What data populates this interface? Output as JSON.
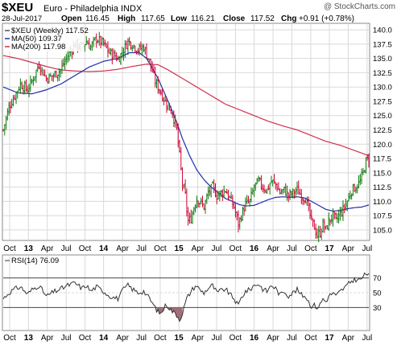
{
  "header": {
    "symbol": "$XEU",
    "name": "Euro - Philadelphia INDX",
    "watermark": "@ StockCharts.com",
    "date": "28-Jul-2017",
    "open_label": "Open",
    "open": "116.45",
    "high_label": "High",
    "high": "117.65",
    "low_label": "Low",
    "low": "116.21",
    "close_label": "Close",
    "close": "117.52",
    "chg_label": "Chg",
    "chg": "+0.91 (+0.78%)"
  },
  "colors": {
    "up_bar": "#0a7a0a",
    "down_bar": "#cc0033",
    "ma50": "#1f2fa8",
    "ma200": "#d0304a",
    "rsi_fill": "#a0707a",
    "grid": "#d9d9d9",
    "rsi_line": "#333333",
    "ref_line": "#444444"
  },
  "chart_data": [
    {
      "type": "ohlc",
      "title": "$XEU (Weekly) 117.52",
      "legend": [
        {
          "name": "MA(50) 109.37",
          "color": "#1f2fa8"
        },
        {
          "name": "MA(200) 117.98",
          "color": "#d0304a"
        }
      ],
      "legend_position": "top-left",
      "grid": true,
      "ylim": [
        103.3,
        141.0
      ],
      "y_ticks": [
        "105.0",
        "107.5",
        "110.0",
        "112.5",
        "115.0",
        "117.5",
        "120.0",
        "122.5",
        "125.0",
        "127.5",
        "130.0",
        "132.5",
        "135.0",
        "137.5",
        "140.0"
      ],
      "y_tick_values": [
        105,
        107.5,
        110,
        112.5,
        115,
        117.5,
        120,
        122.5,
        125,
        127.5,
        130,
        132.5,
        135,
        137.5,
        140
      ],
      "x_ticks": [
        {
          "label": "Oct",
          "w": 4.5,
          "bold": false
        },
        {
          "label": "13",
          "w": 17.6,
          "bold": true
        },
        {
          "label": "Apr",
          "w": 30.7,
          "bold": false
        },
        {
          "label": "Jul",
          "w": 43.9,
          "bold": false
        },
        {
          "label": "Oct",
          "w": 57.0,
          "bold": false
        },
        {
          "label": "14",
          "w": 70.0,
          "bold": true
        },
        {
          "label": "Apr",
          "w": 83.2,
          "bold": false
        },
        {
          "label": "Jul",
          "w": 96.4,
          "bold": false
        },
        {
          "label": "Oct",
          "w": 109.5,
          "bold": false
        },
        {
          "label": "15",
          "w": 122.5,
          "bold": true
        },
        {
          "label": "Apr",
          "w": 135.6,
          "bold": false
        },
        {
          "label": "Jul",
          "w": 148.8,
          "bold": false
        },
        {
          "label": "Oct",
          "w": 162.0,
          "bold": false
        },
        {
          "label": "16",
          "w": 175.0,
          "bold": true
        },
        {
          "label": "Apr",
          "w": 188.2,
          "bold": false
        },
        {
          "label": "Jul",
          "w": 201.3,
          "bold": false
        },
        {
          "label": "Oct",
          "w": 214.5,
          "bold": false
        },
        {
          "label": "17",
          "w": 227.5,
          "bold": true
        },
        {
          "label": "Apr",
          "w": 240.6,
          "bold": false
        },
        {
          "label": "Jul",
          "w": 253.8,
          "bold": false
        }
      ],
      "close_anchors": [
        [
          0,
          122.5
        ],
        [
          4,
          126.5
        ],
        [
          8,
          128.5
        ],
        [
          12,
          130.5
        ],
        [
          17,
          129.5
        ],
        [
          20,
          131.0
        ],
        [
          25,
          134.0
        ],
        [
          30,
          131.5
        ],
        [
          35,
          132.0
        ],
        [
          40,
          133.0
        ],
        [
          45,
          135.5
        ],
        [
          50,
          137.5
        ],
        [
          55,
          137.0
        ],
        [
          58,
          138.0
        ],
        [
          61,
          137.0
        ],
        [
          65,
          138.5
        ],
        [
          70,
          137.5
        ],
        [
          74,
          136.0
        ],
        [
          78,
          135.5
        ],
        [
          80,
          134.8
        ],
        [
          84,
          136.5
        ],
        [
          87,
          138.0
        ],
        [
          90,
          137.5
        ],
        [
          94,
          136.5
        ],
        [
          98,
          137.0
        ],
        [
          102,
          134.5
        ],
        [
          106,
          131.0
        ],
        [
          110,
          129.0
        ],
        [
          114,
          127.0
        ],
        [
          118,
          125.5
        ],
        [
          121,
          122.5
        ],
        [
          123,
          118.0
        ],
        [
          125,
          113.0
        ],
        [
          127,
          111.0
        ],
        [
          128,
          108.5
        ],
        [
          129,
          106.5
        ],
        [
          131,
          107.0
        ],
        [
          133,
          109.0
        ],
        [
          135,
          110.5
        ],
        [
          137,
          110.0
        ],
        [
          140,
          109.0
        ],
        [
          143,
          111.5
        ],
        [
          146,
          112.5
        ],
        [
          149,
          111.0
        ],
        [
          152,
          111.5
        ],
        [
          155,
          112.0
        ],
        [
          158,
          110.5
        ],
        [
          161,
          109.0
        ],
        [
          163,
          107.0
        ],
        [
          164,
          106.0
        ],
        [
          166,
          107.5
        ],
        [
          169,
          109.5
        ],
        [
          172,
          110.0
        ],
        [
          175,
          112.5
        ],
        [
          178,
          113.5
        ],
        [
          181,
          112.5
        ],
        [
          184,
          112.0
        ],
        [
          187,
          113.5
        ],
        [
          190,
          113.0
        ],
        [
          193,
          111.5
        ],
        [
          196,
          112.0
        ],
        [
          199,
          111.0
        ],
        [
          202,
          111.5
        ],
        [
          205,
          112.0
        ],
        [
          208,
          111.0
        ],
        [
          211,
          110.5
        ],
        [
          213,
          108.5
        ],
        [
          215,
          106.5
        ],
        [
          217,
          105.5
        ],
        [
          219,
          104.0
        ],
        [
          221,
          104.5
        ],
        [
          223,
          106.0
        ],
        [
          225,
          105.0
        ],
        [
          227,
          106.5
        ],
        [
          230,
          107.5
        ],
        [
          232,
          106.5
        ],
        [
          234,
          107.5
        ],
        [
          237,
          108.5
        ],
        [
          240,
          110.0
        ],
        [
          243,
          112.0
        ],
        [
          246,
          112.5
        ],
        [
          249,
          113.5
        ],
        [
          251,
          115.0
        ],
        [
          253,
          117.0
        ],
        [
          255,
          117.52
        ]
      ],
      "ma50_anchors": [
        [
          0,
          130.0
        ],
        [
          10,
          129.0
        ],
        [
          20,
          128.8
        ],
        [
          30,
          129.5
        ],
        [
          40,
          130.5
        ],
        [
          50,
          132.0
        ],
        [
          60,
          133.5
        ],
        [
          70,
          134.5
        ],
        [
          80,
          135.0
        ],
        [
          88,
          136.0
        ],
        [
          95,
          136.0
        ],
        [
          100,
          135.0
        ],
        [
          108,
          131.5
        ],
        [
          115,
          127.5
        ],
        [
          120,
          124.5
        ],
        [
          125,
          121.0
        ],
        [
          130,
          118.0
        ],
        [
          135,
          115.5
        ],
        [
          140,
          113.8
        ],
        [
          145,
          112.5
        ],
        [
          150,
          111.5
        ],
        [
          155,
          110.5
        ],
        [
          160,
          110.0
        ],
        [
          165,
          109.4
        ],
        [
          170,
          109.2
        ],
        [
          175,
          109.3
        ],
        [
          180,
          109.8
        ],
        [
          185,
          110.3
        ],
        [
          190,
          110.7
        ],
        [
          195,
          110.8
        ],
        [
          200,
          110.7
        ],
        [
          205,
          110.8
        ],
        [
          210,
          110.6
        ],
        [
          215,
          110.0
        ],
        [
          220,
          109.3
        ],
        [
          225,
          108.6
        ],
        [
          230,
          108.3
        ],
        [
          235,
          108.4
        ],
        [
          240,
          108.7
        ],
        [
          245,
          108.9
        ],
        [
          250,
          109.0
        ],
        [
          255,
          109.37
        ]
      ],
      "ma200_anchors": [
        [
          0,
          135.5
        ],
        [
          10,
          135.0
        ],
        [
          20,
          134.3
        ],
        [
          30,
          133.6
        ],
        [
          40,
          133.0
        ],
        [
          50,
          132.8
        ],
        [
          60,
          132.7
        ],
        [
          70,
          132.8
        ],
        [
          80,
          133.1
        ],
        [
          90,
          133.6
        ],
        [
          100,
          134.0
        ],
        [
          108,
          133.9
        ],
        [
          115,
          133.0
        ],
        [
          125,
          131.5
        ],
        [
          135,
          130.0
        ],
        [
          145,
          128.5
        ],
        [
          155,
          127.0
        ],
        [
          165,
          126.0
        ],
        [
          175,
          125.0
        ],
        [
          185,
          124.0
        ],
        [
          195,
          123.2
        ],
        [
          205,
          122.5
        ],
        [
          215,
          121.5
        ],
        [
          225,
          120.5
        ],
        [
          235,
          119.8
        ],
        [
          245,
          118.9
        ],
        [
          255,
          117.98
        ]
      ]
    },
    {
      "type": "line",
      "title": "RSI(14) 76.09",
      "grid": true,
      "ylim": [
        0,
        100
      ],
      "y_ticks": [
        "70",
        "50",
        "30"
      ],
      "y_tick_values": [
        70,
        50,
        30
      ],
      "reference_lines": [
        70,
        30
      ],
      "fill_below": 30,
      "rsi_anchors": [
        [
          0,
          42
        ],
        [
          4,
          50
        ],
        [
          8,
          55
        ],
        [
          12,
          58
        ],
        [
          17,
          48
        ],
        [
          20,
          54
        ],
        [
          25,
          60
        ],
        [
          30,
          45
        ],
        [
          35,
          51
        ],
        [
          40,
          55
        ],
        [
          45,
          60
        ],
        [
          50,
          63
        ],
        [
          55,
          56
        ],
        [
          58,
          60
        ],
        [
          61,
          52
        ],
        [
          65,
          58
        ],
        [
          70,
          52
        ],
        [
          74,
          46
        ],
        [
          78,
          43
        ],
        [
          80,
          42
        ],
        [
          84,
          55
        ],
        [
          87,
          60
        ],
        [
          90,
          55
        ],
        [
          94,
          50
        ],
        [
          98,
          52
        ],
        [
          102,
          42
        ],
        [
          106,
          30
        ],
        [
          108,
          24
        ],
        [
          110,
          22
        ],
        [
          113,
          32
        ],
        [
          114,
          34
        ],
        [
          116,
          29
        ],
        [
          118,
          25
        ],
        [
          120,
          22
        ],
        [
          121,
          20
        ],
        [
          123,
          14
        ],
        [
          125,
          22
        ],
        [
          127,
          36
        ],
        [
          128,
          42
        ],
        [
          131,
          52
        ],
        [
          133,
          57
        ],
        [
          135,
          60
        ],
        [
          137,
          54
        ],
        [
          140,
          50
        ],
        [
          143,
          56
        ],
        [
          146,
          60
        ],
        [
          149,
          50
        ],
        [
          152,
          53
        ],
        [
          155,
          55
        ],
        [
          158,
          48
        ],
        [
          161,
          42
        ],
        [
          163,
          35
        ],
        [
          164,
          33
        ],
        [
          166,
          43
        ],
        [
          169,
          52
        ],
        [
          172,
          54
        ],
        [
          175,
          60
        ],
        [
          178,
          62
        ],
        [
          181,
          55
        ],
        [
          184,
          52
        ],
        [
          187,
          60
        ],
        [
          190,
          56
        ],
        [
          193,
          47
        ],
        [
          196,
          52
        ],
        [
          199,
          46
        ],
        [
          202,
          50
        ],
        [
          205,
          54
        ],
        [
          208,
          47
        ],
        [
          211,
          45
        ],
        [
          213,
          38
        ],
        [
          215,
          32
        ],
        [
          217,
          33
        ],
        [
          219,
          30
        ],
        [
          221,
          34
        ],
        [
          223,
          42
        ],
        [
          225,
          38
        ],
        [
          227,
          45
        ],
        [
          230,
          50
        ],
        [
          232,
          45
        ],
        [
          234,
          50
        ],
        [
          237,
          55
        ],
        [
          240,
          60
        ],
        [
          243,
          66
        ],
        [
          246,
          68
        ],
        [
          249,
          67
        ],
        [
          251,
          72
        ],
        [
          253,
          75
        ],
        [
          255,
          76.09
        ]
      ],
      "x_ticks": [
        {
          "label": "Oct",
          "w": 4.5,
          "bold": false
        },
        {
          "label": "13",
          "w": 17.6,
          "bold": true
        },
        {
          "label": "Apr",
          "w": 30.7,
          "bold": false
        },
        {
          "label": "Jul",
          "w": 43.9,
          "bold": false
        },
        {
          "label": "Oct",
          "w": 57.0,
          "bold": false
        },
        {
          "label": "14",
          "w": 70.0,
          "bold": true
        },
        {
          "label": "Apr",
          "w": 83.2,
          "bold": false
        },
        {
          "label": "Jul",
          "w": 96.4,
          "bold": false
        },
        {
          "label": "Oct",
          "w": 109.5,
          "bold": false
        },
        {
          "label": "15",
          "w": 122.5,
          "bold": true
        },
        {
          "label": "Apr",
          "w": 135.6,
          "bold": false
        },
        {
          "label": "Jul",
          "w": 148.8,
          "bold": false
        },
        {
          "label": "Oct",
          "w": 162.0,
          "bold": false
        },
        {
          "label": "16",
          "w": 175.0,
          "bold": true
        },
        {
          "label": "Apr",
          "w": 188.2,
          "bold": false
        },
        {
          "label": "Jul",
          "w": 201.3,
          "bold": false
        },
        {
          "label": "Oct",
          "w": 214.5,
          "bold": false
        },
        {
          "label": "17",
          "w": 227.5,
          "bold": true
        },
        {
          "label": "Apr",
          "w": 240.6,
          "bold": false
        },
        {
          "label": "Jul",
          "w": 253.8,
          "bold": false
        }
      ]
    }
  ]
}
